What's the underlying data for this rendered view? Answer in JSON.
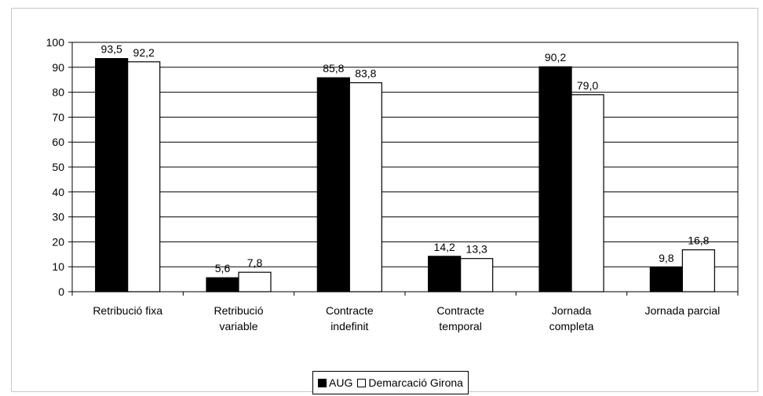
{
  "chart_data": {
    "type": "bar",
    "title": "",
    "xlabel": "",
    "ylabel": "",
    "ylim": [
      0,
      100
    ],
    "yticks": [
      "0",
      "10",
      "20",
      "30",
      "40",
      "50",
      "60",
      "70",
      "80",
      "90",
      "100"
    ],
    "categories": [
      [
        "Retribució fixa"
      ],
      [
        "Retribució",
        "variable"
      ],
      [
        "Contracte",
        "indefinit"
      ],
      [
        "Contracte",
        "temporal"
      ],
      [
        "Jornada",
        "completa"
      ],
      [
        "Jornada parcial"
      ]
    ],
    "series": [
      {
        "name": "AUG",
        "color": "#000000",
        "values": [
          93.5,
          5.6,
          85.8,
          14.2,
          90.2,
          9.8
        ],
        "labels": [
          "93,5",
          "5,6",
          "85,8",
          "14,2",
          "90,2",
          "9,8"
        ]
      },
      {
        "name": "Demarcació Girona",
        "color": "#ffffff",
        "values": [
          92.2,
          7.8,
          83.8,
          13.3,
          79.0,
          16.8
        ],
        "labels": [
          "92,2",
          "7,8",
          "83,8",
          "13,3",
          "79,0",
          "16,8"
        ]
      }
    ],
    "grid": true,
    "legend_position": "bottom"
  }
}
